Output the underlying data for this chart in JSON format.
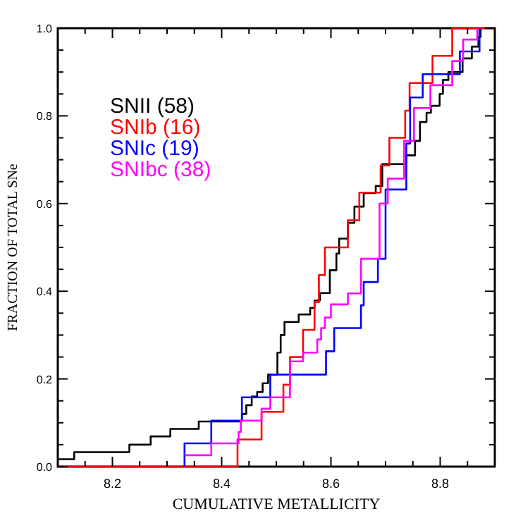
{
  "chart_data": {
    "type": "step",
    "xlabel": "CUMULATIVE METALLICITY",
    "ylabel": "FRACTION OF TOTAL SNe",
    "xlim": [
      8.1,
      8.9
    ],
    "ylim": [
      0,
      1
    ],
    "xticks": [
      {
        "value": 8.15,
        "label": null
      },
      8.2,
      {
        "value": 8.25,
        "label": null
      },
      {
        "value": 8.3,
        "label": null
      },
      {
        "value": 8.35,
        "label": null
      },
      8.4,
      {
        "value": 8.45,
        "label": null
      },
      {
        "value": 8.5,
        "label": null
      },
      {
        "value": 8.55,
        "label": null
      },
      8.6,
      {
        "value": 8.65,
        "label": null
      },
      {
        "value": 8.7,
        "label": null
      },
      {
        "value": 8.75,
        "label": null
      },
      8.8,
      {
        "value": 8.85,
        "label": null
      }
    ],
    "yticks": [
      {
        "value": 0,
        "label": "0.0"
      },
      {
        "value": 0.05,
        "label": null
      },
      {
        "value": 0.1,
        "label": null
      },
      {
        "value": 0.15,
        "label": null
      },
      0.2,
      {
        "value": 0.25,
        "label": null
      },
      {
        "value": 0.3,
        "label": null
      },
      {
        "value": 0.35,
        "label": null
      },
      0.4,
      {
        "value": 0.45,
        "label": null
      },
      {
        "value": 0.5,
        "label": null
      },
      {
        "value": 0.55,
        "label": null
      },
      0.6,
      {
        "value": 0.65,
        "label": null
      },
      {
        "value": 0.7,
        "label": null
      },
      {
        "value": 0.75,
        "label": null
      },
      0.8,
      {
        "value": 0.85,
        "label": null
      },
      {
        "value": 0.9,
        "label": null
      },
      {
        "value": 0.95,
        "label": null
      },
      {
        "value": 1,
        "label": "1.0"
      }
    ],
    "grid": false,
    "legend": "top left",
    "line_style": "solid",
    "marker": "none",
    "series": [
      {
        "name": "SNII (58)",
        "color": "#000000",
        "x": [
          8.1,
          8.13,
          8.231,
          8.27,
          8.306,
          8.358,
          8.437,
          8.445,
          8.455,
          8.465,
          8.475,
          8.485,
          8.502,
          8.508,
          8.515,
          8.541,
          8.562,
          8.57,
          8.58,
          8.598,
          8.61,
          8.615,
          8.631,
          8.643,
          8.66,
          8.682,
          8.694,
          8.738,
          8.754,
          8.763,
          8.775,
          8.783,
          8.799,
          8.805,
          8.815,
          8.841,
          8.858,
          8.87,
          8.874
        ],
        "values": [
          0.017,
          0.033,
          0.05,
          0.069,
          0.086,
          0.103,
          0.12,
          0.14,
          0.16,
          0.17,
          0.19,
          0.21,
          0.26,
          0.3,
          0.33,
          0.347,
          0.362,
          0.379,
          0.396,
          0.448,
          0.486,
          0.52,
          0.556,
          0.593,
          0.624,
          0.64,
          0.69,
          0.71,
          0.743,
          0.786,
          0.807,
          0.823,
          0.85,
          0.882,
          0.9,
          0.931,
          0.958,
          0.98,
          1.0
        ]
      },
      {
        "name": "SNIb (16)",
        "color": "#ff0000",
        "x": [
          8.1,
          8.429,
          8.473,
          8.513,
          8.525,
          8.549,
          8.57,
          8.578,
          8.589,
          8.631,
          8.652,
          8.691,
          8.707,
          8.736,
          8.744,
          8.786,
          8.822,
          8.9
        ],
        "values": [
          0,
          0.062,
          0.125,
          0.187,
          0.25,
          0.312,
          0.375,
          0.437,
          0.5,
          0.562,
          0.625,
          0.687,
          0.75,
          0.812,
          0.875,
          0.937,
          1.0,
          1.0
        ]
      },
      {
        "name": "SNIc (19)",
        "color": "#0000ff",
        "x": [
          8.332,
          8.332,
          8.381,
          8.437,
          8.489,
          8.591,
          8.606,
          8.655,
          8.66,
          8.686,
          8.7,
          8.738,
          8.745,
          8.768,
          8.836,
          8.872
        ],
        "values": [
          0,
          0.053,
          0.105,
          0.158,
          0.21,
          0.263,
          0.316,
          0.368,
          0.421,
          0.474,
          0.632,
          0.737,
          0.842,
          0.895,
          0.947,
          1.0
        ]
      },
      {
        "name": "SNIbc (38)",
        "color": "#ff00ff",
        "x": [
          8.332,
          8.381,
          8.431,
          8.435,
          8.473,
          8.489,
          8.525,
          8.549,
          8.575,
          8.582,
          8.589,
          8.6,
          8.631,
          8.655,
          8.689,
          8.704,
          8.734,
          8.752,
          8.782,
          8.822,
          8.842,
          8.868
        ],
        "values": [
          0.026,
          0.053,
          0.079,
          0.105,
          0.132,
          0.158,
          0.24,
          0.26,
          0.29,
          0.316,
          0.34,
          0.37,
          0.395,
          0.474,
          0.6,
          0.657,
          0.743,
          0.818,
          0.87,
          0.925,
          0.974,
          1.0
        ]
      }
    ]
  }
}
